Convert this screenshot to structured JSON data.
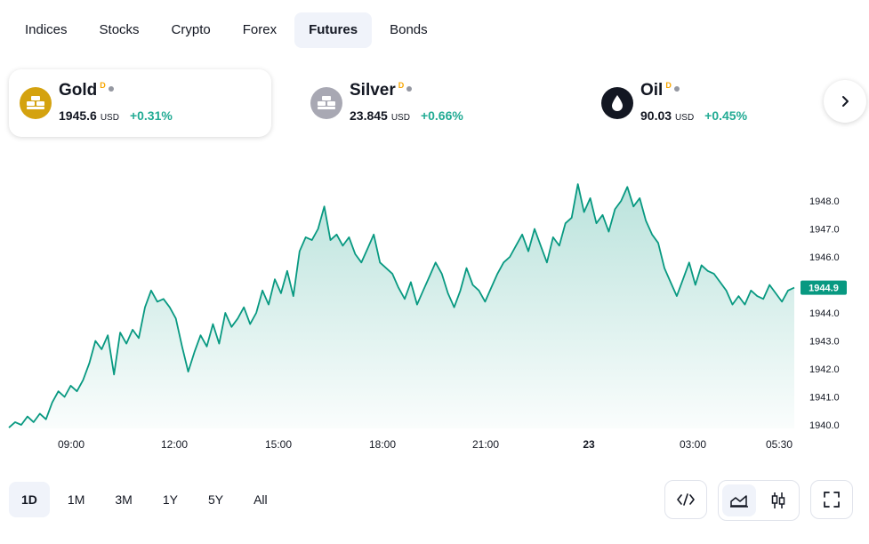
{
  "tabs": [
    "Indices",
    "Stocks",
    "Crypto",
    "Forex",
    "Futures",
    "Bonds"
  ],
  "active_tab": "Futures",
  "cards": [
    {
      "name": "Gold",
      "badge": "D",
      "price": "1945.6",
      "currency": "USD",
      "change": "+0.31%",
      "icon": "gold-bars-icon",
      "icon_color": "#d4a20f"
    },
    {
      "name": "Silver",
      "badge": "D",
      "price": "23.845",
      "currency": "USD",
      "change": "+0.66%",
      "icon": "silver-bars-icon",
      "icon_color": "#a8a8b3"
    },
    {
      "name": "Oil",
      "badge": "D",
      "price": "90.03",
      "currency": "USD",
      "change": "+0.45%",
      "icon": "oil-drop-icon",
      "icon_color": "#131722"
    }
  ],
  "next_icon": "chevron-right-icon",
  "chart_data": {
    "type": "area",
    "x_tick_labels": [
      "09:00",
      "12:00",
      "15:00",
      "18:00",
      "21:00",
      "23",
      "03:00",
      "05:30"
    ],
    "y_tick_labels": [
      "1948.0",
      "1947.0",
      "1946.0",
      "1945.0",
      "1944.0",
      "1943.0",
      "1942.0",
      "1941.0",
      "1940.0"
    ],
    "ylim": [
      1940.0,
      1948.0
    ],
    "last_price_label": "1944.9",
    "last_price": 1944.9,
    "line_color": "#089981",
    "series": [
      {
        "values": [
          1939.9,
          1940.1,
          1940.0,
          1940.3,
          1940.1,
          1940.4,
          1940.2,
          1940.8,
          1941.2,
          1941.0,
          1941.4,
          1941.2,
          1941.6,
          1942.2,
          1943.0,
          1942.7,
          1943.2,
          1941.8,
          1943.3,
          1942.9,
          1943.4,
          1943.1,
          1944.2,
          1944.8,
          1944.4,
          1944.5,
          1944.2,
          1943.8,
          1942.8,
          1941.9,
          1942.6,
          1943.2,
          1942.8,
          1943.6,
          1942.9,
          1944.0,
          1943.5,
          1943.8,
          1944.2,
          1943.6,
          1944.0,
          1944.8,
          1944.3,
          1945.2,
          1944.7,
          1945.5,
          1944.6,
          1946.2,
          1946.7,
          1946.6,
          1947.0,
          1947.8,
          1946.6,
          1946.8,
          1946.4,
          1946.7,
          1946.1,
          1945.8,
          1946.3,
          1946.8,
          1945.8,
          1945.6,
          1945.4,
          1944.9,
          1944.5,
          1945.1,
          1944.3,
          1944.8,
          1945.3,
          1945.8,
          1945.4,
          1944.7,
          1944.2,
          1944.8,
          1945.6,
          1945.0,
          1944.8,
          1944.4,
          1944.9,
          1945.4,
          1945.8,
          1946.0,
          1946.4,
          1946.8,
          1946.2,
          1947.0,
          1946.4,
          1945.8,
          1946.7,
          1946.4,
          1947.2,
          1947.4,
          1948.6,
          1947.6,
          1948.1,
          1947.2,
          1947.5,
          1946.9,
          1947.7,
          1948.0,
          1948.5,
          1947.8,
          1948.1,
          1947.3,
          1946.8,
          1946.5,
          1945.6,
          1945.1,
          1944.6,
          1945.2,
          1945.8,
          1945.0,
          1945.7,
          1945.5,
          1945.4,
          1945.1,
          1944.8,
          1944.3,
          1944.6,
          1944.3,
          1944.8,
          1944.6,
          1944.5,
          1945.0,
          1944.7,
          1944.4,
          1944.8,
          1944.9
        ]
      }
    ]
  },
  "ranges": [
    "1D",
    "1M",
    "3M",
    "1Y",
    "5Y",
    "All"
  ],
  "active_range": "1D",
  "tool_icons": [
    "embed-code-icon",
    "area-chart-icon",
    "candles-icon",
    "fullscreen-icon"
  ]
}
